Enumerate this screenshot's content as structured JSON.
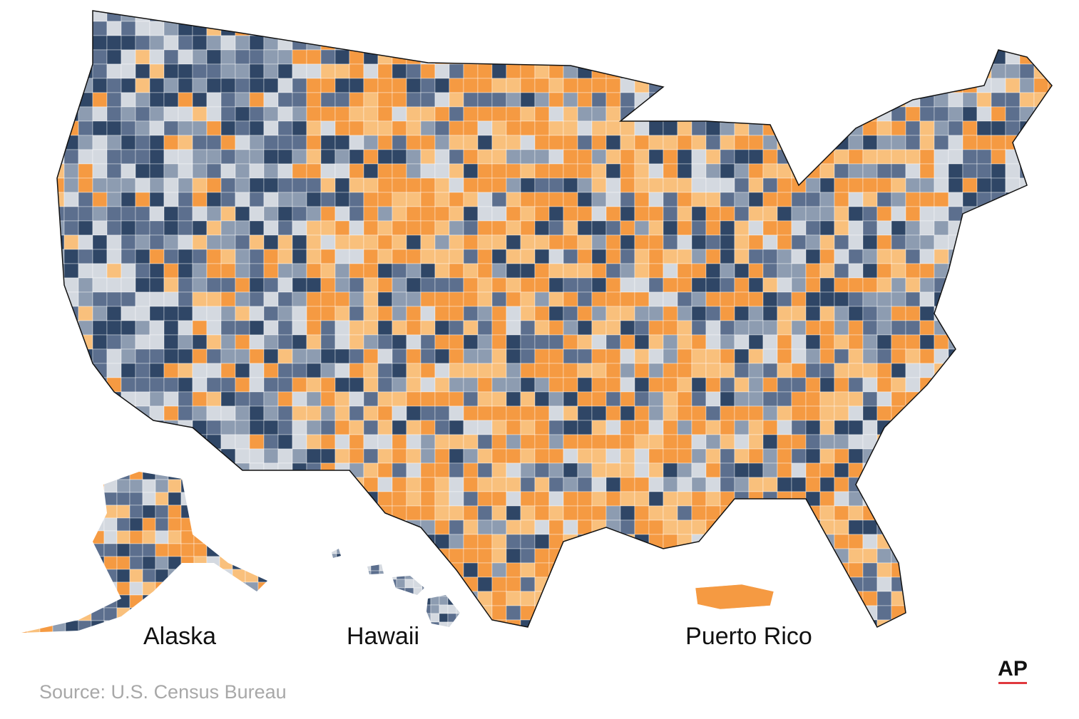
{
  "labels": {
    "alaska": "Alaska",
    "hawaii": "Hawaii",
    "puerto_rico": "Puerto Rico"
  },
  "source": "Source: U.S. Census Bureau",
  "logo": "AP"
}
